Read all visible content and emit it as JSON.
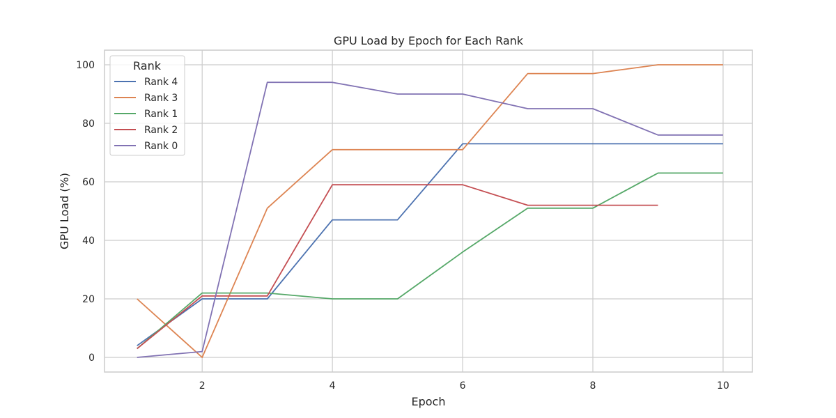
{
  "chart_data": {
    "type": "line",
    "title": "GPU Load by Epoch for Each Rank",
    "xlabel": "Epoch",
    "ylabel": "GPU Load (%)",
    "xlim": [
      0.5,
      10.45
    ],
    "ylim": [
      -5,
      105
    ],
    "xticks": [
      2,
      4,
      6,
      8,
      10
    ],
    "yticks": [
      0,
      20,
      40,
      60,
      80,
      100
    ],
    "grid": true,
    "legend": {
      "title": "Rank",
      "placement": "upper-left"
    },
    "series": [
      {
        "name": "Rank 4",
        "color": "#4c72b0",
        "x": [
          1,
          2,
          3,
          4,
          5,
          6,
          7,
          8,
          9,
          10
        ],
        "values": [
          4,
          20,
          20,
          47,
          47,
          73,
          73,
          73,
          73,
          73
        ]
      },
      {
        "name": "Rank 3",
        "color": "#dd8452",
        "x": [
          1,
          2,
          3,
          4,
          5,
          6,
          7,
          8,
          9,
          10
        ],
        "values": [
          20,
          0,
          51,
          71,
          71,
          71,
          97,
          97,
          100,
          100
        ]
      },
      {
        "name": "Rank 1",
        "color": "#55a868",
        "x": [
          1,
          2,
          3,
          4,
          5,
          6,
          7,
          8,
          9,
          10
        ],
        "values": [
          3,
          22,
          22,
          20,
          20,
          36,
          51,
          51,
          63,
          63
        ]
      },
      {
        "name": "Rank 2",
        "color": "#c44e52",
        "x": [
          1,
          2,
          3,
          4,
          5,
          6,
          7,
          8,
          9
        ],
        "values": [
          3,
          21,
          21,
          59,
          59,
          59,
          52,
          52,
          52
        ]
      },
      {
        "name": "Rank 0",
        "color": "#8172b3",
        "x": [
          1,
          2,
          3,
          4,
          5,
          6,
          7,
          8,
          9,
          10
        ],
        "values": [
          0,
          2,
          94,
          94,
          90,
          90,
          85,
          85,
          76,
          76
        ]
      }
    ]
  }
}
